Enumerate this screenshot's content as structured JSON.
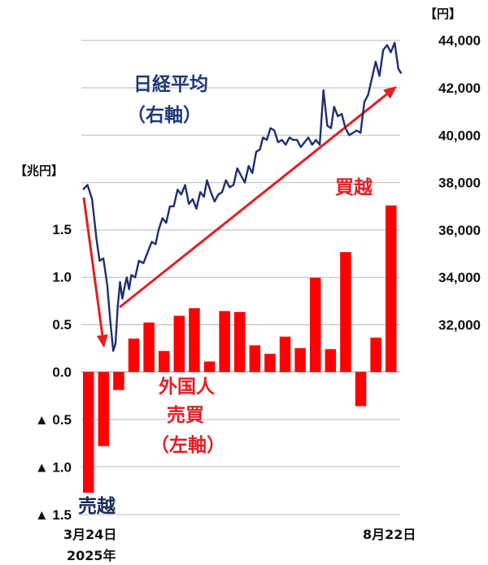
{
  "chart_data": {
    "type": "bar+line",
    "left_axis": {
      "unit": "【兆円】",
      "ticks": [
        1.5,
        1.0,
        0.5,
        0.0,
        -0.5,
        -1.0,
        -1.5
      ],
      "tick_labels": [
        "1.5",
        "1.0",
        "0.5",
        "0.0",
        "▲ 0.5",
        "▲ 1.0",
        "▲ 1.5"
      ],
      "ylim": [
        -1.5,
        1.5
      ]
    },
    "right_axis": {
      "unit": "【円】",
      "ticks": [
        32000,
        34000,
        36000,
        38000,
        40000,
        42000,
        44000
      ],
      "tick_labels": [
        "32,000",
        "34,000",
        "36,000",
        "38,000",
        "40,000",
        "42,000",
        "44,000"
      ],
      "ylim": [
        28000,
        44000
      ]
    },
    "x_labels": {
      "start": "3月24日",
      "start_year": "2025年",
      "end": "8月22日"
    },
    "bars": {
      "name": "外国人売買（左軸）",
      "color": "#ff0000",
      "values": [
        -1.27,
        -0.78,
        -0.19,
        0.35,
        0.52,
        0.22,
        0.59,
        0.67,
        0.11,
        0.64,
        0.63,
        0.28,
        0.19,
        0.37,
        0.25,
        0.99,
        0.24,
        1.26,
        -0.36,
        0.36,
        1.75
      ]
    },
    "line": {
      "name": "日経平均（右軸）",
      "color": "#1f2f6e",
      "x": [
        0,
        0.3,
        0.6,
        0.9,
        1.1,
        1.35,
        1.6,
        1.8,
        2.0,
        2.15,
        2.3,
        2.45,
        2.6,
        2.75,
        2.9,
        3.05,
        3.2,
        3.45,
        3.7,
        4.0,
        4.3,
        4.55,
        4.8,
        5.0,
        5.25,
        5.5,
        5.75,
        6.0,
        6.25,
        6.5,
        6.75,
        7.0,
        7.25,
        7.5,
        7.75,
        8.0,
        8.2,
        8.45,
        8.7,
        8.95,
        9.2,
        9.45,
        9.7,
        9.95,
        10.2,
        10.45,
        10.7,
        10.95,
        11.2,
        11.45,
        11.7,
        11.9,
        12.15,
        12.4,
        12.65,
        12.9,
        13.15,
        13.4,
        13.65,
        13.9,
        14.15,
        14.4,
        14.65,
        14.9,
        15.15,
        15.4,
        15.65,
        15.9,
        16.15,
        16.4,
        16.6,
        16.85,
        17.1,
        17.35,
        17.6,
        17.85,
        18.1,
        18.35,
        18.6,
        18.85,
        19.1,
        19.35,
        19.6,
        19.85,
        20.1,
        20.35,
        20.6,
        20.85,
        21.05
      ],
      "y": [
        37700,
        37900,
        37300,
        35600,
        34700,
        34800,
        33700,
        32200,
        30900,
        31200,
        32800,
        33800,
        33100,
        33600,
        34000,
        33500,
        34100,
        34000,
        34700,
        34600,
        35100,
        35500,
        35400,
        36000,
        36500,
        36300,
        37000,
        37000,
        37700,
        37500,
        37900,
        37100,
        37300,
        36900,
        37600,
        37400,
        38100,
        37600,
        37200,
        37500,
        37600,
        38100,
        37800,
        37900,
        38600,
        38300,
        38000,
        38700,
        38400,
        39300,
        39400,
        39900,
        39800,
        40300,
        40200,
        39700,
        39800,
        39600,
        39900,
        39800,
        39800,
        39500,
        39700,
        39900,
        39600,
        39800,
        39600,
        41900,
        40400,
        40300,
        41200,
        40800,
        40900,
        40300,
        40000,
        40100,
        40200,
        40100,
        41400,
        41700,
        42400,
        43100,
        42500,
        43600,
        43800,
        43500,
        43900,
        42800,
        42600
      ]
    },
    "annotations": {
      "nikkei": [
        "日経平均",
        "（右軸）"
      ],
      "foreign": [
        "外国人",
        "売買",
        "（左軸）"
      ],
      "buy": "買越",
      "sell": "売越"
    },
    "grid": true
  }
}
